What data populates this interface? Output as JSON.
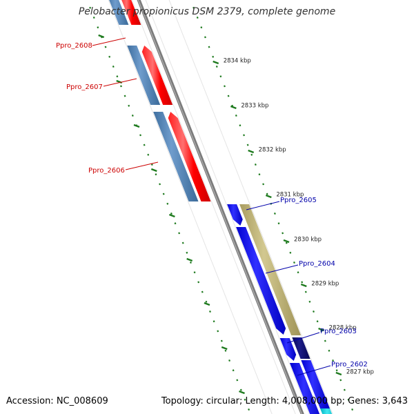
{
  "title": "Pelobacter propionicus DSM 2379, complete genome",
  "footer": {
    "accession": "Accession: NC_008609",
    "summary": "Topology: circular; Length: 4,008,000 bp; Genes: 3,643"
  },
  "colors": {
    "backbone": "#808080",
    "tick_green": "#1e7a1e",
    "forward_gene_red": "#ff0000",
    "forward_cds_steelblue": "#4a7fb5",
    "reverse_gene_blue": "#1010ee",
    "reverse_cds_khaki": "#b9ad74",
    "reverse_cds_navy": "#10106e",
    "reverse_cds_cyan": "#00c8d8",
    "forward_label": "#cc0000",
    "reverse_label": "#0000aa"
  },
  "scale_labels": [
    "2834 kbp",
    "2833 kbp",
    "2832 kbp",
    "2831 kbp",
    "2830 kbp",
    "2829 kbp",
    "2828 kbp",
    "2827 kbp"
  ],
  "forward_genes": [
    {
      "label": "Ppro_2608"
    },
    {
      "label": "Ppro_2607"
    },
    {
      "label": "Ppro_2606"
    }
  ],
  "reverse_genes": [
    {
      "label": "Ppro_2605"
    },
    {
      "label": "Ppro_2604"
    },
    {
      "label": "Ppro_2603"
    },
    {
      "label": "Ppro_2602"
    }
  ]
}
